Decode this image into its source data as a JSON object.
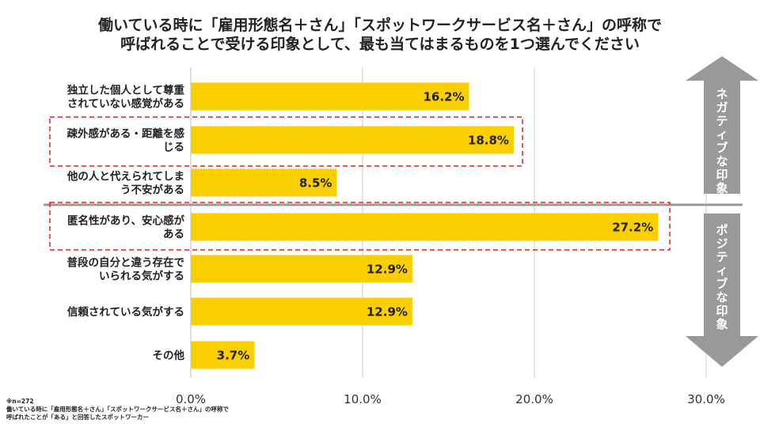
{
  "title_lines": [
    "働いている時に「雇用形態名＋さん」「スポットワークサービス名＋さん」の呼称で",
    "呼ばれることで受ける印象として、最も当てはまるものを1つ選んでください"
  ],
  "side_labels": {
    "negative": [
      "ネ",
      "ガ",
      "テ",
      "ィ",
      "ブ",
      "な",
      "印",
      "象"
    ],
    "positive": [
      "ポ",
      "ジ",
      "テ",
      "ィ",
      "ブ",
      "な",
      "印",
      "象"
    ]
  },
  "footnote_lines": [
    "※n=272",
    "働いている時に「雇用形態名＋さん」「スポットワークサービス名＋さん」の呼称で",
    "呼ばれたことが「ある」と回答したスポットワーカー"
  ],
  "colors": {
    "bar": "#f9cf00",
    "grid": "#cccccc",
    "divider": "#999999",
    "highlight_box": "#e02020",
    "arrow": "#999999"
  },
  "chart_data": {
    "type": "bar",
    "orientation": "horizontal",
    "title": "働いている時に「雇用形態名＋さん」「スポットワークサービス名＋さん」の呼称で呼ばれることで受ける印象として、最も当てはまるものを1つ選んでください",
    "categories": [
      [
        "独立した個人として尊重",
        "されていない感覚がある"
      ],
      [
        "疎外感がある・距離を感",
        "じる"
      ],
      [
        "他の人と代えられてしま",
        "う不安がある"
      ],
      [
        "匿名性があり、安心感が",
        "ある"
      ],
      [
        "普段の自分と違う存在で",
        "いられる気がする"
      ],
      [
        "信頼されている気がする"
      ],
      [
        "その他"
      ]
    ],
    "values": [
      16.2,
      18.8,
      8.5,
      27.2,
      12.9,
      12.9,
      3.7
    ],
    "value_labels": [
      "16.2%",
      "18.8%",
      "8.5%",
      "27.2%",
      "12.9%",
      "12.9%",
      "3.7%"
    ],
    "x_ticks": [
      0,
      10,
      20,
      30
    ],
    "x_tick_labels": [
      "0.0%",
      "10.0%",
      "20.0%",
      "30.0%"
    ],
    "xlim": [
      0,
      30
    ],
    "highlighted": [
      1,
      3
    ],
    "groups": [
      {
        "name": "ネガティブな印象",
        "range": [
          0,
          2
        ]
      },
      {
        "name": "ポジティブな印象",
        "range": [
          3,
          6
        ]
      }
    ]
  }
}
